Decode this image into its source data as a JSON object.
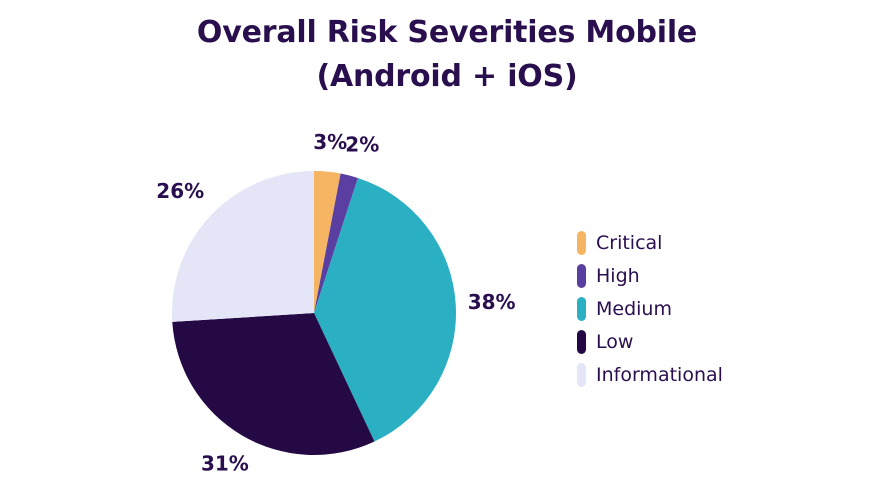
{
  "chart_data": {
    "type": "pie",
    "title_line1": "Overall Risk Severities Mobile",
    "title_line2": "(Android + iOS)",
    "categories": [
      "Critical",
      "High",
      "Medium",
      "Low",
      "Informational"
    ],
    "values": [
      3,
      2,
      38,
      31,
      26
    ],
    "value_labels": [
      "3%",
      "2%",
      "38%",
      "31%",
      "26%"
    ],
    "colors": [
      "#f6b563",
      "#5a3ea1",
      "#2ab0c2",
      "#240945",
      "#e4e6f8"
    ],
    "legend_position": "right"
  }
}
